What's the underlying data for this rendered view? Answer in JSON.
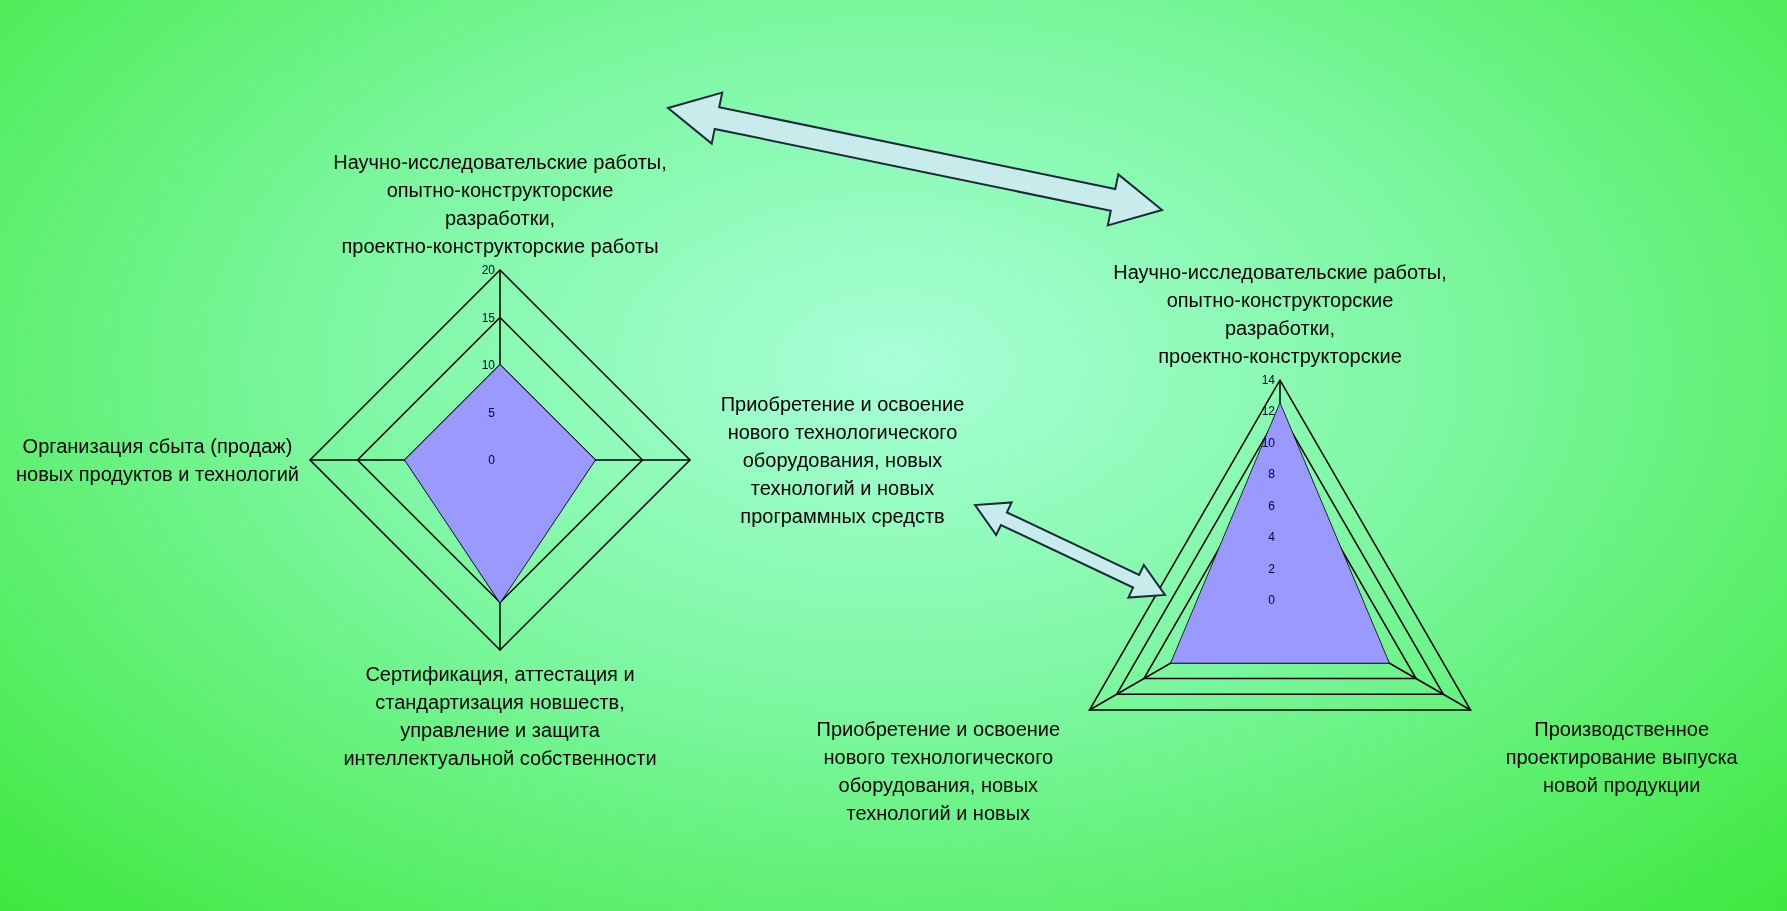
{
  "chart_data": [
    {
      "type": "radar",
      "categories": [
        "Научно-исследовательские работы, опытно-конструкторские разработки, проектно-конструкторские работы",
        "Приобретение и освоение нового технологического оборудования, новых технологий и новых программных средств",
        "Сертификация, аттестация и стандартизация новшеств, управление и защита интеллектуальной собственности",
        "Организация сбыта (продаж) новых продуктов и технологий"
      ],
      "series": [
        {
          "color": "#9999ff",
          "values": [
            10,
            10,
            15,
            10
          ]
        }
      ],
      "ylim": [
        0,
        20
      ],
      "yticks": [
        0,
        5,
        10,
        15,
        20
      ],
      "marker": "none"
    },
    {
      "type": "radar",
      "categories": [
        "Научно-исследовательские работы, опытно-конструкторские разработки, проектно-конструкторские",
        "Производственное проектирование выпуска новой продукции",
        "Приобретение и освоение нового технологического оборудования, новых технологий и новых"
      ],
      "series": [
        {
          "color": "#9999ff",
          "values": [
            12.5,
            8,
            8
          ]
        }
      ],
      "ylim": [
        0,
        14
      ],
      "yticks": [
        0,
        2,
        4,
        6,
        8,
        10,
        12,
        14
      ],
      "marker": "none"
    }
  ]
}
